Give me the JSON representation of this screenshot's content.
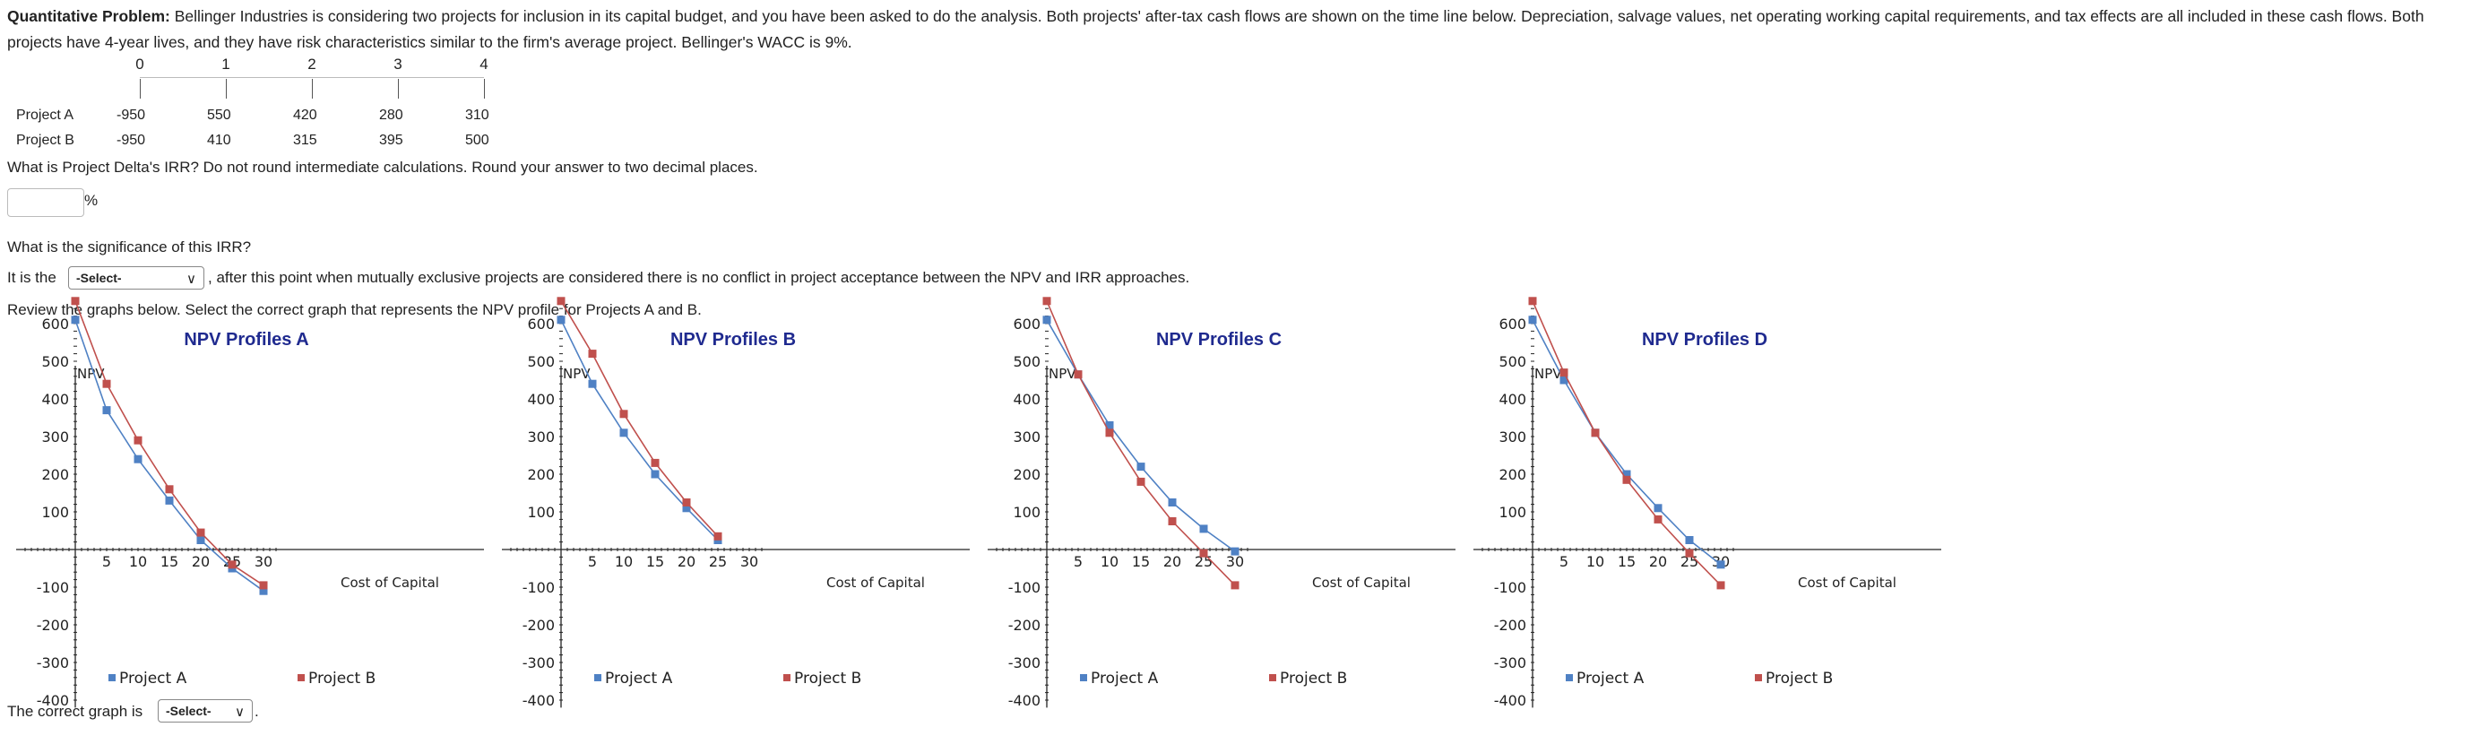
{
  "problem": {
    "label": "Quantitative Problem:",
    "text": "Bellinger Industries is considering two projects for inclusion in its capital budget, and you have been asked to do the analysis. Both projects' after-tax cash flows are shown on the time line below. Depreciation, salvage values, net operating working capital requirements, and tax effects are all included in these cash flows. Both projects have 4-year lives, and they have risk characteristics similar to the firm's average project. Bellinger's WACC is 9%."
  },
  "cashflows": {
    "periods": [
      "0",
      "1",
      "2",
      "3",
      "4"
    ],
    "rows": [
      {
        "name": "Project A",
        "values": [
          "-950",
          "550",
          "420",
          "280",
          "310"
        ]
      },
      {
        "name": "Project B",
        "values": [
          "-950",
          "410",
          "315",
          "395",
          "500"
        ]
      }
    ]
  },
  "q1": {
    "text": "What is Project Delta's IRR? Do not round intermediate calculations. Round your answer to two decimal places.",
    "input_value": "",
    "unit": "%"
  },
  "q2": {
    "text": "What is the significance of this IRR?",
    "prefix": "It is the",
    "select": "-Select-",
    "suffix": ", after this point when mutually exclusive projects are considered there is no conflict in project acceptance between the NPV and IRR approaches."
  },
  "q3": {
    "text": "Review the graphs below. Select the correct graph that represents the NPV profile for Projects A and B."
  },
  "final": {
    "prefix": "The correct graph is",
    "select": "-Select-",
    "suffix": "."
  },
  "colors": {
    "project_a": "#4f81c4",
    "project_b": "#c0504d",
    "title": "#1f2a8f"
  },
  "chart_data": [
    {
      "type": "line",
      "title": "NPV Profiles A",
      "ylabel": "NPV",
      "xlabel": "Cost of Capital",
      "xticks": [
        5,
        10,
        15,
        20,
        25,
        30
      ],
      "yticks": [
        600,
        500,
        400,
        300,
        200,
        100,
        -100,
        -200,
        -300,
        -400
      ],
      "xlim": [
        0,
        30
      ],
      "ylim": [
        -400,
        600
      ],
      "legend": [
        "Project A",
        "Project B"
      ],
      "x": [
        0,
        5,
        10,
        15,
        20,
        25,
        30
      ],
      "series": [
        {
          "name": "Project A",
          "values": [
            610,
            370,
            240,
            130,
            25,
            -50,
            -110
          ]
        },
        {
          "name": "Project B",
          "values": [
            660,
            440,
            290,
            160,
            45,
            -40,
            -95
          ]
        }
      ]
    },
    {
      "type": "line",
      "title": "NPV Profiles B",
      "ylabel": "NPV",
      "xlabel": "Cost of Capital",
      "xticks": [
        5,
        10,
        15,
        20,
        25,
        30
      ],
      "yticks": [
        600,
        500,
        400,
        300,
        200,
        100,
        -100,
        -200,
        -300,
        -400
      ],
      "xlim": [
        0,
        30
      ],
      "ylim": [
        -400,
        600
      ],
      "legend": [
        "Project A",
        "Project B"
      ],
      "x": [
        0,
        5,
        10,
        15,
        20,
        25
      ],
      "series": [
        {
          "name": "Project A",
          "values": [
            610,
            440,
            310,
            200,
            110,
            25
          ]
        },
        {
          "name": "Project B",
          "values": [
            660,
            520,
            360,
            230,
            125,
            35
          ]
        }
      ]
    },
    {
      "type": "line",
      "title": "NPV Profiles C",
      "ylabel": "NPV",
      "xlabel": "Cost of Capital",
      "xticks": [
        5,
        10,
        15,
        20,
        25,
        30
      ],
      "yticks": [
        600,
        500,
        400,
        300,
        200,
        100,
        -100,
        -200,
        -300,
        -400
      ],
      "xlim": [
        0,
        30
      ],
      "ylim": [
        -400,
        600
      ],
      "legend": [
        "Project A",
        "Project B"
      ],
      "x": [
        0,
        5,
        10,
        15,
        20,
        25,
        30
      ],
      "series": [
        {
          "name": "Project A",
          "values": [
            610,
            465,
            330,
            220,
            125,
            55,
            -5
          ]
        },
        {
          "name": "Project B",
          "values": [
            660,
            465,
            310,
            180,
            75,
            -10,
            -95
          ]
        }
      ]
    },
    {
      "type": "line",
      "title": "NPV Profiles D",
      "ylabel": "NPV",
      "xlabel": "Cost of Capital",
      "xticks": [
        5,
        10,
        15,
        20,
        25,
        30
      ],
      "yticks": [
        600,
        500,
        400,
        300,
        200,
        100,
        -100,
        -200,
        -300,
        -400
      ],
      "xlim": [
        0,
        30
      ],
      "ylim": [
        -400,
        600
      ],
      "legend": [
        "Project A",
        "Project B"
      ],
      "x": [
        0,
        5,
        10,
        15,
        20,
        25,
        30
      ],
      "series": [
        {
          "name": "Project A",
          "values": [
            610,
            450,
            310,
            200,
            110,
            25,
            -40
          ]
        },
        {
          "name": "Project B",
          "values": [
            660,
            470,
            310,
            185,
            80,
            -10,
            -95
          ]
        }
      ]
    }
  ]
}
